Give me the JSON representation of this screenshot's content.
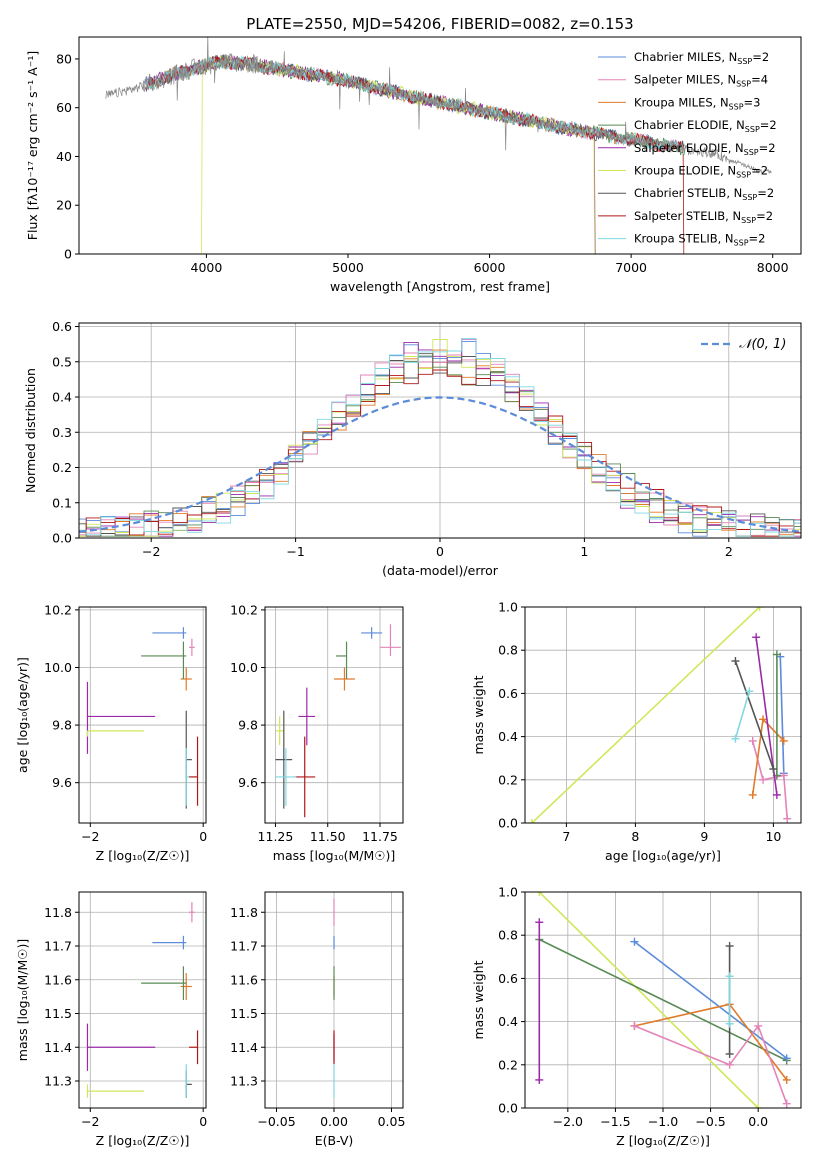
{
  "figure_title": "PLATE=2550, MJD=54206, FIBERID=0082, z=0.153",
  "colors": {
    "chabrier_miles": "#5b8bd9",
    "salpeter_miles": "#e384b8",
    "kroupa_miles": "#e07b2a",
    "chabrier_elodie": "#5a8a55",
    "salpeter_elodie": "#9a2aa8",
    "kroupa_elodie": "#cfe85a",
    "chabrier_stelib": "#555555",
    "salpeter_stelib": "#b01818",
    "kroupa_stelib": "#7fd8e0",
    "data": "#888888"
  },
  "legend_sed": [
    {
      "text": "Chabrier MILES, N",
      "sub": "SSP",
      "tail": "=2",
      "color": "#5b8bd9"
    },
    {
      "text": "Salpeter MILES, N",
      "sub": "SSP",
      "tail": "=4",
      "color": "#e384b8"
    },
    {
      "text": "Kroupa MILES, N",
      "sub": "SSP",
      "tail": "=3",
      "color": "#e07b2a"
    },
    {
      "text": "Chabrier ELODIE, N",
      "sub": "SSP",
      "tail": "=2",
      "color": "#5a8a55"
    },
    {
      "text": "Salpeter ELODIE, N",
      "sub": "SSP",
      "tail": "=2",
      "color": "#9a2aa8"
    },
    {
      "text": "Kroupa ELODIE, N",
      "sub": "SSP",
      "tail": "=2",
      "color": "#cfe85a"
    },
    {
      "text": "Chabrier STELIB, N",
      "sub": "SSP",
      "tail": "=2",
      "color": "#555555"
    },
    {
      "text": "Salpeter STELIB, N",
      "sub": "SSP",
      "tail": "=2",
      "color": "#b01818"
    },
    {
      "text": "Kroupa STELIB, N",
      "sub": "SSP",
      "tail": "=2",
      "color": "#7fd8e0"
    }
  ],
  "chart_data": [
    {
      "id": "spectrum",
      "type": "line",
      "xlabel": "wavelength [Angstrom, rest frame]",
      "ylabel": "Flux [fλ10⁻¹⁷ erg cm⁻² s⁻¹ A⁻¹]",
      "xlim": [
        3100,
        8200
      ],
      "ylim": [
        0,
        89
      ],
      "xticks": [
        4000,
        5000,
        6000,
        7000,
        8000
      ],
      "yticks": [
        0,
        20,
        40,
        60,
        80
      ],
      "grid": false,
      "legend": "top-right",
      "continuum": {
        "x": [
          3300,
          3500,
          3700,
          3900,
          4100,
          4300,
          4600,
          5000,
          5500,
          6000,
          6500,
          7000,
          7300,
          7600,
          7900
        ],
        "y": [
          65,
          68,
          72,
          76,
          79,
          78,
          75,
          71,
          64,
          58,
          52,
          47,
          44,
          41,
          34
        ]
      },
      "model_drops": [
        {
          "series": "Salpeter STELIB",
          "cutoff_low": 3560,
          "cutoff_high": 7380
        },
        {
          "series": "Kroupa ELODIE",
          "cutoff_low": 3960,
          "cutoff_high": 6750
        },
        {
          "series": "Salpeter ELODIE",
          "cutoff_low": 3560,
          "cutoff_high": 6750
        }
      ]
    },
    {
      "id": "residuals",
      "type": "histogram",
      "xlabel": "(data-model)/error",
      "ylabel": "Normed distribution",
      "xlim": [
        -2.5,
        2.5
      ],
      "ylim": [
        0,
        0.61
      ],
      "xticks": [
        -2,
        -1,
        0,
        1,
        2
      ],
      "yticks": [
        0.0,
        0.1,
        0.2,
        0.3,
        0.4,
        0.5,
        0.6
      ],
      "grid": true,
      "legend": "top-right",
      "legend_label": "𝒩(0, 1)",
      "bin_width": 0.1,
      "reference": {
        "name": "𝒩(0, 1)",
        "mean": 0,
        "sigma": 1
      }
    },
    {
      "id": "age_vs_Z",
      "type": "errorbar",
      "xlabel": "Z [log₁₀(Z/Z☉)]",
      "ylabel": "age  [log₁₀(age/yr)]",
      "xlim": [
        -2.2,
        0.05
      ],
      "ylim": [
        9.46,
        10.21
      ],
      "xticks": [
        -2,
        0
      ],
      "yticks": [
        9.6,
        9.8,
        10.0,
        10.2
      ],
      "grid": true,
      "points": [
        {
          "series": "Chabrier MILES",
          "x": -0.35,
          "y": 10.12,
          "xerr": [
            0.55,
            0.05
          ],
          "yerr": [
            0.02,
            0.02
          ]
        },
        {
          "series": "Salpeter MILES",
          "x": -0.2,
          "y": 10.07,
          "xerr": [
            0.05,
            0.05
          ],
          "yerr": [
            0.03,
            0.03
          ]
        },
        {
          "series": "Kroupa MILES",
          "x": -0.3,
          "y": 9.96,
          "xerr": [
            0.1,
            0.1
          ],
          "yerr": [
            0.04,
            0.04
          ]
        },
        {
          "series": "Chabrier ELODIE",
          "x": -0.35,
          "y": 10.04,
          "xerr": [
            0.75,
            0.05
          ],
          "yerr": [
            0.08,
            0.05
          ]
        },
        {
          "series": "Salpeter ELODIE",
          "x": -2.05,
          "y": 9.83,
          "xerr": [
            0.0,
            1.2
          ],
          "yerr": [
            0.13,
            0.12
          ]
        },
        {
          "series": "Kroupa ELODIE",
          "x": -2.05,
          "y": 9.78,
          "xerr": [
            0.0,
            1.0
          ],
          "yerr": [
            0.02,
            0.0
          ]
        },
        {
          "series": "Chabrier STELIB",
          "x": -0.3,
          "y": 9.68,
          "xerr": [
            0.0,
            0.1
          ],
          "yerr": [
            0.17,
            0.17
          ]
        },
        {
          "series": "Salpeter STELIB",
          "x": -0.1,
          "y": 9.62,
          "xerr": [
            0.15,
            0.0
          ],
          "yerr": [
            0.1,
            0.14
          ]
        },
        {
          "series": "Kroupa STELIB",
          "x": -0.3,
          "y": 9.62,
          "xerr": [
            0.0,
            0.05
          ],
          "yerr": [
            0.1,
            0.1
          ]
        }
      ]
    },
    {
      "id": "age_vs_mass",
      "type": "errorbar",
      "xlabel": "mass [log₁₀(M/M☉)]",
      "ylabel": "",
      "xlim": [
        11.2,
        11.86
      ],
      "ylim": [
        9.46,
        10.21
      ],
      "xticks": [
        11.25,
        11.5,
        11.75
      ],
      "xtick_labels": [
        "11.25",
        "11.50",
        "11.75"
      ],
      "yticks": [
        9.6,
        9.8,
        10.0,
        10.2
      ],
      "grid": true,
      "points": [
        {
          "series": "Chabrier MILES",
          "x": 11.71,
          "y": 10.12,
          "xerr": [
            0.05,
            0.05
          ],
          "yerr": [
            0.02,
            0.02
          ]
        },
        {
          "series": "Salpeter MILES",
          "x": 11.8,
          "y": 10.07,
          "xerr": [
            0.05,
            0.05
          ],
          "yerr": [
            0.03,
            0.08
          ]
        },
        {
          "series": "Kroupa MILES",
          "x": 11.58,
          "y": 9.96,
          "xerr": [
            0.05,
            0.05
          ],
          "yerr": [
            0.04,
            0.04
          ]
        },
        {
          "series": "Chabrier ELODIE",
          "x": 11.59,
          "y": 10.04,
          "xerr": [
            0.05,
            0.0
          ],
          "yerr": [
            0.08,
            0.05
          ]
        },
        {
          "series": "Salpeter ELODIE",
          "x": 11.4,
          "y": 9.83,
          "xerr": [
            0.04,
            0.04
          ],
          "yerr": [
            0.1,
            0.1
          ]
        },
        {
          "series": "Kroupa ELODIE",
          "x": 11.27,
          "y": 9.78,
          "xerr": [
            0.02,
            0.02
          ],
          "yerr": [
            0.05,
            0.05
          ]
        },
        {
          "series": "Chabrier STELIB",
          "x": 11.29,
          "y": 9.68,
          "xerr": [
            0.04,
            0.04
          ],
          "yerr": [
            0.17,
            0.17
          ]
        },
        {
          "series": "Salpeter STELIB",
          "x": 11.39,
          "y": 9.62,
          "xerr": [
            0.05,
            0.05
          ],
          "yerr": [
            0.14,
            0.14
          ]
        },
        {
          "series": "Kroupa STELIB",
          "x": 11.3,
          "y": 9.62,
          "xerr": [
            0.05,
            0.05
          ],
          "yerr": [
            0.1,
            0.1
          ]
        }
      ]
    },
    {
      "id": "weight_vs_age",
      "type": "line",
      "xlabel": "age  [log₁₀(age/yr)]",
      "ylabel": "mass weight",
      "xlim": [
        6.4,
        10.4
      ],
      "ylim": [
        0,
        1
      ],
      "xticks": [
        7,
        8,
        9,
        10
      ],
      "yticks": [
        0.0,
        0.2,
        0.4,
        0.6,
        0.8,
        1.0
      ],
      "grid": true,
      "series": [
        {
          "name": "Kroupa ELODIE",
          "x": [
            6.5,
            9.8
          ],
          "y": [
            0.0,
            1.0
          ]
        },
        {
          "name": "Chabrier MILES",
          "x": [
            10.1,
            10.15
          ],
          "y": [
            0.77,
            0.23
          ]
        },
        {
          "name": "Salpeter MILES",
          "x": [
            9.7,
            9.85,
            10.15,
            10.2
          ],
          "y": [
            0.38,
            0.2,
            0.22,
            0.02
          ]
        },
        {
          "name": "Kroupa MILES",
          "x": [
            9.7,
            9.85,
            10.15
          ],
          "y": [
            0.13,
            0.48,
            0.38
          ]
        },
        {
          "name": "Chabrier ELODIE",
          "x": [
            10.05,
            10.05
          ],
          "y": [
            0.78,
            0.22
          ]
        },
        {
          "name": "Salpeter ELODIE",
          "x": [
            9.75,
            10.05
          ],
          "y": [
            0.86,
            0.13
          ]
        },
        {
          "name": "Chabrier STELIB",
          "x": [
            9.45,
            10.0
          ],
          "y": [
            0.75,
            0.25
          ]
        },
        {
          "name": "Kroupa STELIB",
          "x": [
            9.45,
            9.65
          ],
          "y": [
            0.39,
            0.61
          ]
        }
      ]
    },
    {
      "id": "mass_vs_Z",
      "type": "errorbar",
      "xlabel": "Z [log₁₀(Z/Z☉)]",
      "ylabel": "mass [log₁₀(M/M☉)]",
      "xlim": [
        -2.2,
        0.05
      ],
      "ylim": [
        11.22,
        11.86
      ],
      "xticks": [
        -2,
        0
      ],
      "yticks": [
        11.3,
        11.4,
        11.5,
        11.6,
        11.7,
        11.8
      ],
      "grid": true,
      "points": [
        {
          "series": "Chabrier MILES",
          "x": -0.35,
          "y": 11.71,
          "xerr": [
            0.55,
            0.05
          ],
          "yerr": [
            0.02,
            0.02
          ]
        },
        {
          "series": "Salpeter MILES",
          "x": -0.2,
          "y": 11.8,
          "xerr": [
            0.05,
            0.05
          ],
          "yerr": [
            0.03,
            0.03
          ]
        },
        {
          "series": "Kroupa MILES",
          "x": -0.3,
          "y": 11.58,
          "xerr": [
            0.1,
            0.1
          ],
          "yerr": [
            0.04,
            0.04
          ]
        },
        {
          "series": "Chabrier ELODIE",
          "x": -0.35,
          "y": 11.59,
          "xerr": [
            0.75,
            0.05
          ],
          "yerr": [
            0.05,
            0.05
          ]
        },
        {
          "series": "Salpeter ELODIE",
          "x": -2.05,
          "y": 11.4,
          "xerr": [
            0.0,
            1.2
          ],
          "yerr": [
            0.07,
            0.07
          ]
        },
        {
          "series": "Kroupa ELODIE",
          "x": -2.05,
          "y": 11.27,
          "xerr": [
            0.0,
            1.0
          ],
          "yerr": [
            0.02,
            0.02
          ]
        },
        {
          "series": "Chabrier STELIB",
          "x": -0.3,
          "y": 11.29,
          "xerr": [
            0.0,
            0.1
          ],
          "yerr": [
            0.04,
            0.04
          ]
        },
        {
          "series": "Salpeter STELIB",
          "x": -0.1,
          "y": 11.4,
          "xerr": [
            0.15,
            0.0
          ],
          "yerr": [
            0.05,
            0.05
          ]
        },
        {
          "series": "Kroupa STELIB",
          "x": -0.3,
          "y": 11.3,
          "xerr": [
            0.0,
            0.05
          ],
          "yerr": [
            0.05,
            0.05
          ]
        }
      ]
    },
    {
      "id": "mass_vs_ebv",
      "type": "errorbar",
      "xlabel": "E(B-V)",
      "ylabel": "",
      "xlim": [
        -0.06,
        0.06
      ],
      "ylim": [
        11.22,
        11.86
      ],
      "xticks": [
        -0.05,
        0.0,
        0.05
      ],
      "xtick_labels": [
        "−0.05",
        "0.00",
        "0.05"
      ],
      "yticks": [
        11.3,
        11.4,
        11.5,
        11.6,
        11.7,
        11.8
      ],
      "grid": true,
      "points": [
        {
          "series": "Salpeter MILES",
          "x": 0.0,
          "y": 11.8,
          "xerr": [
            0,
            0
          ],
          "yerr": [
            0.04,
            0.04
          ]
        },
        {
          "series": "Chabrier MILES",
          "x": 0.0,
          "y": 11.71,
          "xerr": [
            0,
            0
          ],
          "yerr": [
            0.02,
            0.02
          ]
        },
        {
          "series": "Kroupa MILES",
          "x": 0.0,
          "y": 11.58,
          "xerr": [
            0,
            0
          ],
          "yerr": [
            0.03,
            0.03
          ]
        },
        {
          "series": "Chabrier ELODIE",
          "x": 0.0,
          "y": 11.59,
          "xerr": [
            0,
            0
          ],
          "yerr": [
            0.05,
            0.05
          ]
        },
        {
          "series": "Salpeter ELODIE",
          "x": 0.0,
          "y": 11.4,
          "xerr": [
            0,
            0
          ],
          "yerr": [
            0.04,
            0.04
          ]
        },
        {
          "series": "Salpeter STELIB",
          "x": 0.0,
          "y": 11.4,
          "xerr": [
            0,
            0
          ],
          "yerr": [
            0.05,
            0.05
          ]
        },
        {
          "series": "Kroupa STELIB",
          "x": 0.0,
          "y": 11.3,
          "xerr": [
            0,
            0
          ],
          "yerr": [
            0.05,
            0.05
          ]
        }
      ]
    },
    {
      "id": "weight_vs_Z",
      "type": "line",
      "xlabel": "Z [log₁₀(Z/Z☉)]",
      "ylabel": "mass weight",
      "xlim": [
        -2.45,
        0.45
      ],
      "ylim": [
        0,
        1
      ],
      "xticks": [
        -2.0,
        -1.5,
        -1.0,
        -0.5,
        0.0
      ],
      "xtick_labels": [
        "−2.0",
        "−1.5",
        "−1.0",
        "−0.5",
        "0.0"
      ],
      "yticks": [
        0.0,
        0.2,
        0.4,
        0.6,
        0.8,
        1.0
      ],
      "grid": true,
      "series": [
        {
          "name": "Kroupa ELODIE",
          "x": [
            -2.3,
            0.0
          ],
          "y": [
            1.0,
            0.0
          ]
        },
        {
          "name": "Chabrier ELODIE",
          "x": [
            -2.3,
            0.3
          ],
          "y": [
            0.78,
            0.22
          ]
        },
        {
          "name": "Chabrier MILES",
          "x": [
            -1.3,
            0.3
          ],
          "y": [
            0.77,
            0.23
          ]
        },
        {
          "name": "Salpeter ELODIE",
          "x": [
            -2.3,
            -2.3
          ],
          "y": [
            0.86,
            0.13
          ]
        },
        {
          "name": "Kroupa MILES",
          "x": [
            -1.3,
            -0.3,
            0.3
          ],
          "y": [
            0.38,
            0.48,
            0.13
          ]
        },
        {
          "name": "Salpeter MILES",
          "x": [
            -1.3,
            -0.3,
            0.0,
            0.3
          ],
          "y": [
            0.38,
            0.2,
            0.38,
            0.02
          ]
        },
        {
          "name": "Chabrier STELIB",
          "x": [
            -0.3,
            -0.3
          ],
          "y": [
            0.75,
            0.25
          ]
        },
        {
          "name": "Kroupa STELIB",
          "x": [
            -0.3,
            -0.3
          ],
          "y": [
            0.61,
            0.39
          ]
        }
      ]
    }
  ]
}
